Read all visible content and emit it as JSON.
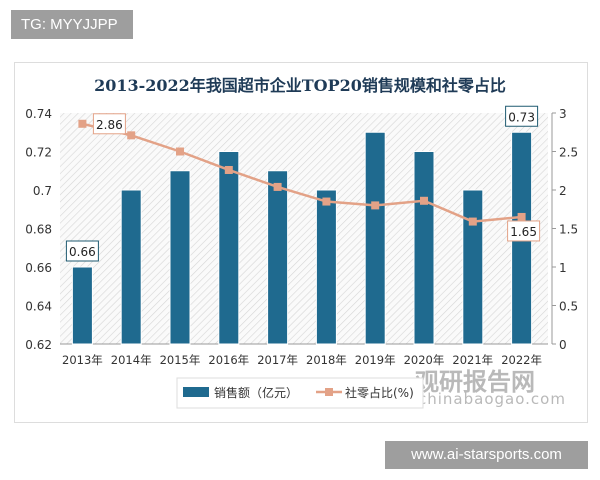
{
  "badge": "TG: MYYJJPP",
  "watermark": "www.ai-starsports.com",
  "logo": {
    "cn": "观研报告网",
    "en": "chinabaogao.com"
  },
  "chart_data": {
    "type": "bar",
    "title": "2013-2022年我国超市企业TOP20销售规模和社零占比",
    "categories": [
      "2013年",
      "2014年",
      "2015年",
      "2016年",
      "2017年",
      "2018年",
      "2019年",
      "2020年",
      "2021年",
      "2022年"
    ],
    "series": [
      {
        "name": "销售额（亿元）",
        "type": "bar",
        "axis": "left",
        "color": "#1f6a8f",
        "values": [
          0.66,
          0.7,
          0.71,
          0.72,
          0.71,
          0.7,
          0.73,
          0.72,
          0.7,
          0.73
        ]
      },
      {
        "name": "社零占比(%)",
        "type": "line",
        "axis": "right",
        "color": "#e3a287",
        "values": [
          2.86,
          2.71,
          2.5,
          2.26,
          2.04,
          1.85,
          1.8,
          1.86,
          1.59,
          1.65
        ]
      }
    ],
    "ylim_left": [
      0.62,
      0.74
    ],
    "yticks_left": [
      "0.62",
      "0.64",
      "0.66",
      "0.68",
      "0.7",
      "0.72",
      "0.74"
    ],
    "ylim_right": [
      0,
      3
    ],
    "yticks_right": [
      "0",
      "0.5",
      "1",
      "1.5",
      "2",
      "2.5",
      "3"
    ],
    "data_labels": [
      {
        "series": 0,
        "index": 0,
        "text": "0.66"
      },
      {
        "series": 0,
        "index": 9,
        "text": "0.73"
      },
      {
        "series": 1,
        "index": 0,
        "text": "2.86"
      },
      {
        "series": 1,
        "index": 9,
        "text": "1.65"
      }
    ],
    "legend": "bottom"
  }
}
